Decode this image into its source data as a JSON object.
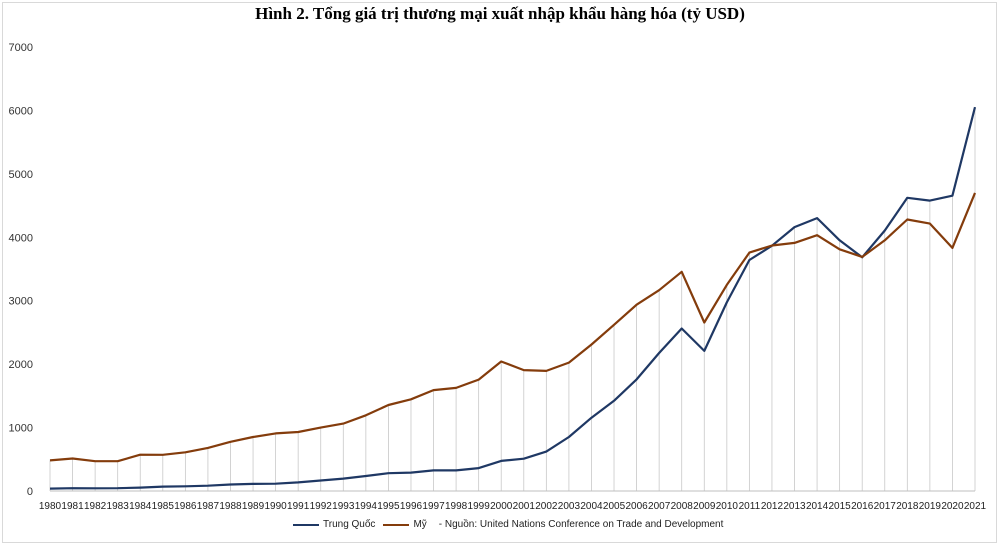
{
  "title": "Hình 2. Tổng giá trị thương mại xuất nhập khẩu hàng hóa (tỷ USD)",
  "source_text": "- Nguồn: United Nations Conference on Trade and Development",
  "colors": {
    "china": "#1f3864",
    "usa": "#843c0c",
    "grid": "#c8c8c8"
  },
  "chart_data": {
    "type": "line",
    "title": "Hình 2. Tổng giá trị thương mại xuất nhập khẩu hàng hóa (tỷ USD)",
    "xlabel": "",
    "ylabel": "",
    "ylim": [
      0,
      7000
    ],
    "yticks": [
      "0",
      "1000",
      "2000",
      "3000",
      "4000",
      "5000",
      "6000",
      "7000"
    ],
    "categories": [
      "1980",
      "1981",
      "1982",
      "1983",
      "1984",
      "1985",
      "1986",
      "1987",
      "1988",
      "1989",
      "1990",
      "1991",
      "1992",
      "1993",
      "1994",
      "1995",
      "1996",
      "1997",
      "1998",
      "1999",
      "2000",
      "2001",
      "2002",
      "2003",
      "2004",
      "2005",
      "2006",
      "2007",
      "2008",
      "2009",
      "2010",
      "2011",
      "2012",
      "2013",
      "2014",
      "2015",
      "2016",
      "2017",
      "2018",
      "2019",
      "2020",
      "2021"
    ],
    "series": [
      {
        "name": "Trung Quốc",
        "values": [
          38,
          44,
          42,
          44,
          54,
          70,
          74,
          83,
          103,
          112,
          115,
          136,
          166,
          196,
          237,
          281,
          290,
          325,
          324,
          361,
          474,
          510,
          621,
          851,
          1155,
          1422,
          1760,
          2176,
          2562,
          2208,
          2974,
          3642,
          3867,
          4160,
          4302,
          3953,
          3685,
          4107,
          4623,
          4578,
          4656,
          6052
        ]
      },
      {
        "name": "Mỹ",
        "values": [
          482,
          512,
          470,
          470,
          573,
          570,
          610,
          679,
          776,
          852,
          908,
          930,
          1000,
          1063,
          1193,
          1356,
          1446,
          1591,
          1626,
          1757,
          2041,
          1906,
          1893,
          2024,
          2310,
          2620,
          2937,
          3165,
          3456,
          2657,
          3250,
          3758,
          3870,
          3911,
          4033,
          3810,
          3690,
          3953,
          4280,
          4215,
          3832,
          4700
        ]
      }
    ]
  }
}
